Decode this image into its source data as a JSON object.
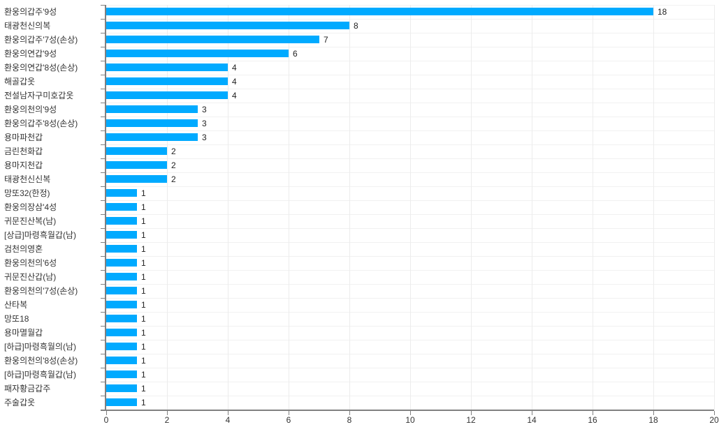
{
  "chart_data": {
    "type": "bar",
    "orientation": "horizontal",
    "title": "",
    "xlabel": "",
    "ylabel": "",
    "categories": [
      "환웅의갑주'9성",
      "태광천신의복",
      "환웅의갑주'7성(손상)",
      "환웅의연갑'9성",
      "환웅의연갑'8성(손상)",
      "해골갑옷",
      "전설남자구미호갑옷",
      "환웅의천의'9성",
      "환웅의갑주'8성(손상)",
      "용마파천갑",
      "금린천화갑",
      "용마지천갑",
      "태광천신신복",
      "망또32(한정)",
      "환웅의장삼'4성",
      "귀문진산복(남)",
      "[상급]마령흑월갑(남)",
      "검천의영혼",
      "환웅의천의'6성",
      "귀문진산갑(남)",
      "환웅의천의'7성(손상)",
      "산타복",
      "망또18",
      "용마멸월갑",
      "[하급]마령흑월의(남)",
      "환웅의천의'8성(손상)",
      "[하급]마령흑월갑(남)",
      "패자황금갑주",
      "주술갑옷"
    ],
    "values": [
      18,
      8,
      7,
      6,
      4,
      4,
      4,
      3,
      3,
      3,
      2,
      2,
      2,
      1,
      1,
      1,
      1,
      1,
      1,
      1,
      1,
      1,
      1,
      1,
      1,
      1,
      1,
      1,
      1
    ],
    "value_labels_shown": true,
    "xlim": [
      0,
      20
    ],
    "x_ticks": [
      0,
      2,
      4,
      6,
      8,
      10,
      12,
      14,
      16,
      18,
      20
    ],
    "grid": true,
    "legend": "none",
    "bar_color": "#00aaff"
  }
}
